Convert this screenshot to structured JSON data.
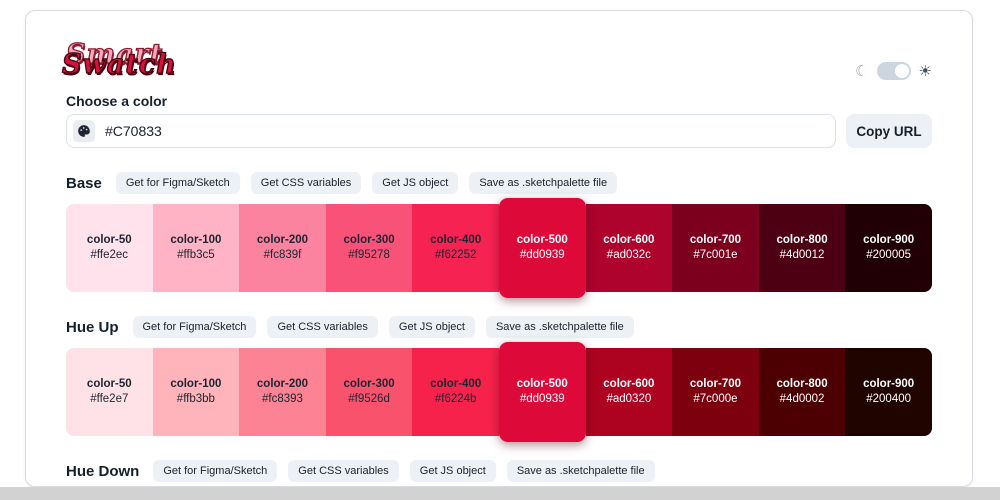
{
  "logo": {
    "line1": "Smart",
    "line2": "Swatch"
  },
  "theme_toggle": {
    "moon_glyph": "☾",
    "sun_glyph": "☀",
    "state": "light"
  },
  "choose_label": "Choose a color",
  "color_input": {
    "value": "#C70833",
    "icon": "palette-icon"
  },
  "copy_url_label": "Copy URL",
  "action_labels": [
    "Get for Figma/Sketch",
    "Get CSS variables",
    "Get JS object",
    "Save as .sketchpalette file"
  ],
  "colors": {
    "accent": "#dd0939",
    "button_bg": "#edf1f6",
    "card_border": "#d8dce1",
    "text_dark": "#1c2430"
  },
  "sections": [
    {
      "title": "Base",
      "swatches": [
        {
          "name": "color-50",
          "hex": "#ffe2ec",
          "text": "dark"
        },
        {
          "name": "color-100",
          "hex": "#ffb3c5",
          "text": "dark"
        },
        {
          "name": "color-200",
          "hex": "#fc839f",
          "text": "dark"
        },
        {
          "name": "color-300",
          "hex": "#f95278",
          "text": "dark"
        },
        {
          "name": "color-400",
          "hex": "#f62252",
          "text": "dark"
        },
        {
          "name": "color-500",
          "hex": "#dd0939",
          "text": "light",
          "highlighted": true
        },
        {
          "name": "color-600",
          "hex": "#ad032c",
          "text": "light"
        },
        {
          "name": "color-700",
          "hex": "#7c001e",
          "text": "light"
        },
        {
          "name": "color-800",
          "hex": "#4d0012",
          "text": "light"
        },
        {
          "name": "color-900",
          "hex": "#200005",
          "text": "light"
        }
      ]
    },
    {
      "title": "Hue Up",
      "swatches": [
        {
          "name": "color-50",
          "hex": "#ffe2e7",
          "text": "dark"
        },
        {
          "name": "color-100",
          "hex": "#ffb3bb",
          "text": "dark"
        },
        {
          "name": "color-200",
          "hex": "#fc8393",
          "text": "dark"
        },
        {
          "name": "color-300",
          "hex": "#f9526d",
          "text": "dark"
        },
        {
          "name": "color-400",
          "hex": "#f6224b",
          "text": "dark"
        },
        {
          "name": "color-500",
          "hex": "#dd0939",
          "text": "light",
          "highlighted": true
        },
        {
          "name": "color-600",
          "hex": "#ad0320",
          "text": "light"
        },
        {
          "name": "color-700",
          "hex": "#7c000e",
          "text": "light"
        },
        {
          "name": "color-800",
          "hex": "#4d0002",
          "text": "light"
        },
        {
          "name": "color-900",
          "hex": "#200400",
          "text": "light"
        }
      ]
    },
    {
      "title": "Hue Down",
      "swatches": []
    }
  ]
}
